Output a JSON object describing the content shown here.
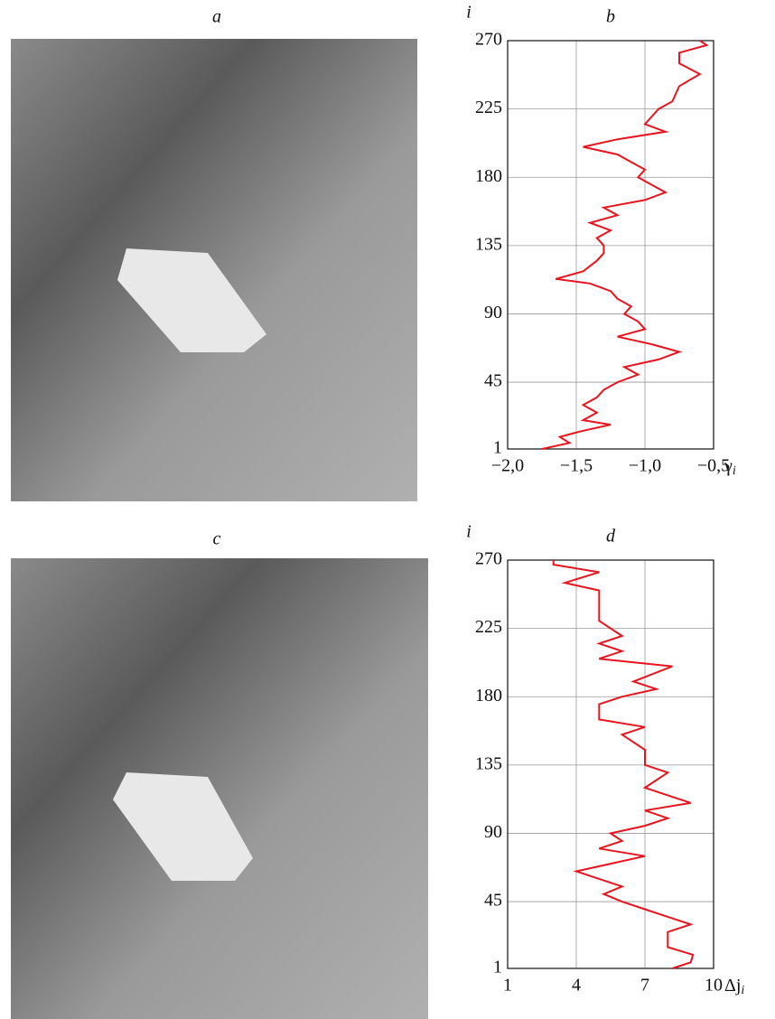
{
  "panels": [
    {
      "label": "a"
    },
    {
      "label": "c"
    }
  ],
  "chart_data": [
    {
      "type": "line",
      "title": "b",
      "ylabel": "i",
      "xlabel": "γ",
      "xlabel_sub": "i",
      "color": "#e8141e",
      "grid": true,
      "xlim": [
        -2,
        -0.5
      ],
      "ylim": [
        1,
        270
      ],
      "xticks": [
        {
          "value": -2,
          "label": "−2,0"
        },
        {
          "value": -1.5,
          "label": "−1,5"
        },
        {
          "value": -1,
          "label": "−1,0"
        },
        {
          "value": -0.5,
          "label": "−0,5"
        }
      ],
      "yticks": [
        1,
        45,
        90,
        135,
        180,
        225,
        270
      ],
      "i": [
        1,
        5,
        9,
        13,
        17,
        20,
        25,
        30,
        35,
        40,
        45,
        50,
        55,
        60,
        65,
        70,
        75,
        80,
        85,
        90,
        95,
        100,
        105,
        110,
        113,
        118,
        125,
        130,
        135,
        140,
        145,
        150,
        155,
        160,
        165,
        170,
        175,
        180,
        185,
        190,
        195,
        200,
        205,
        210,
        215,
        220,
        225,
        230,
        240,
        248,
        255,
        262,
        267,
        270
      ],
      "values": [
        -1.75,
        -1.55,
        -1.62,
        -1.45,
        -1.25,
        -1.45,
        -1.35,
        -1.45,
        -1.35,
        -1.3,
        -1.2,
        -1.05,
        -1.15,
        -0.9,
        -0.75,
        -0.95,
        -1.2,
        -1.0,
        -1.05,
        -1.15,
        -1.1,
        -1.2,
        -1.25,
        -1.4,
        -1.65,
        -1.45,
        -1.35,
        -1.3,
        -1.3,
        -1.35,
        -1.25,
        -1.4,
        -1.2,
        -1.3,
        -1.0,
        -0.85,
        -0.95,
        -1.05,
        -1.0,
        -1.1,
        -1.2,
        -1.45,
        -1.2,
        -0.85,
        -1.0,
        -0.95,
        -0.9,
        -0.8,
        -0.75,
        -0.6,
        -0.75,
        -0.75,
        -0.55,
        -0.6
      ]
    },
    {
      "type": "line",
      "title": "d",
      "ylabel": "i",
      "xlabel": "Δj",
      "xlabel_sub": "i",
      "color": "#e8141e",
      "grid": true,
      "xlim": [
        1,
        10
      ],
      "ylim": [
        1,
        270
      ],
      "xticks": [
        1,
        4,
        7,
        10
      ],
      "yticks": [
        1,
        45,
        90,
        135,
        180,
        225,
        270
      ],
      "i": [
        1,
        5,
        10,
        15,
        25,
        30,
        35,
        40,
        45,
        50,
        55,
        60,
        65,
        70,
        75,
        80,
        85,
        90,
        95,
        100,
        105,
        110,
        115,
        120,
        130,
        135,
        145,
        155,
        160,
        165,
        175,
        180,
        185,
        190,
        200,
        205,
        210,
        215,
        220,
        230,
        250,
        255,
        262,
        267,
        270
      ],
      "values": [
        8.2,
        9,
        9.1,
        8,
        8,
        9,
        8,
        7,
        6,
        5.2,
        6,
        5,
        4,
        5.5,
        7,
        5,
        6,
        5.5,
        7,
        8,
        7,
        9,
        8,
        7,
        8,
        7,
        7,
        6,
        7,
        5,
        5,
        6,
        7.5,
        6.5,
        8.2,
        5,
        6,
        5,
        6,
        5,
        5,
        3.5,
        5,
        3,
        3
      ]
    }
  ]
}
